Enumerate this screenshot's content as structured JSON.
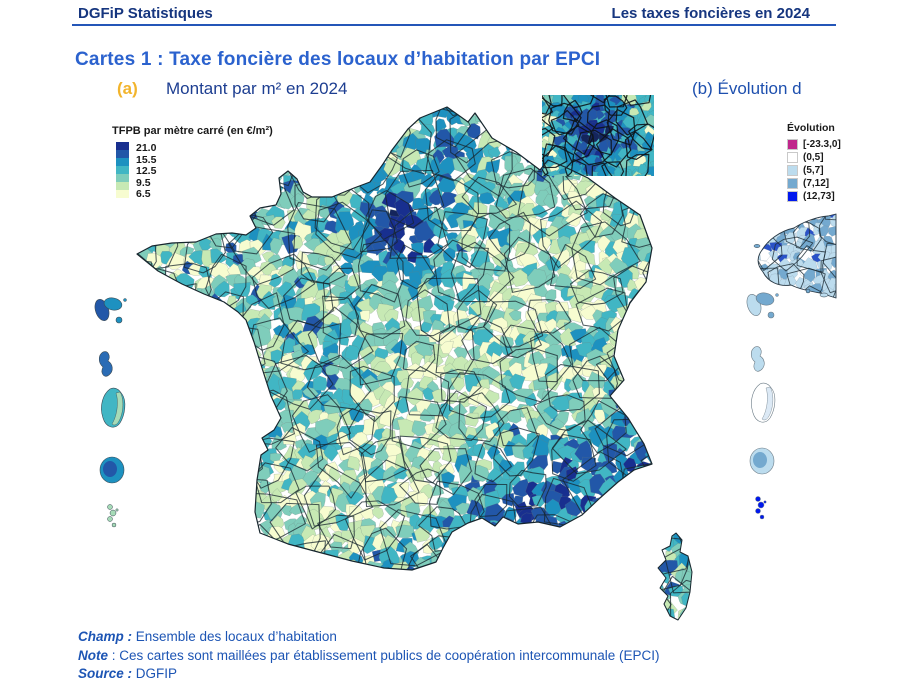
{
  "header": {
    "left": "DGFiP Statistiques",
    "right": "Les taxes foncières en 2024",
    "rule_color": "#2456b8"
  },
  "title": "Cartes 1 : Taxe foncière des locaux d’habitation par EPCI",
  "subtitles": {
    "a_marker": "(a)",
    "a_text": "Montant par m² en 2024",
    "b_text": "(b) Évolution d"
  },
  "map_a": {
    "legend_title": "TFPB par mètre carré (en €/m²)",
    "legend_labels": [
      "21.0",
      "15.5",
      "12.5",
      "9.5",
      "6.5"
    ],
    "ramp_colors": [
      "#182f8f",
      "#2257a8",
      "#1d91c0",
      "#41b6c4",
      "#7fcdbb",
      "#c7e9b4",
      "#f7fcd0"
    ],
    "palette": {
      "c0": "#f7fcd0",
      "c1": "#c7e9b4",
      "c2": "#7fcdbb",
      "c3": "#41b6c4",
      "c4": "#1d91c0",
      "c5": "#2257a8",
      "c6": "#182f8f",
      "darkest": "#14255c"
    }
  },
  "map_b": {
    "legend_title": "Évolution",
    "classes": [
      {
        "color": "#c0268c",
        "label": "[-23.3,0]"
      },
      {
        "color": "#ffffff",
        "label": "(0,5]"
      },
      {
        "color": "#bcdcee",
        "label": "(5,7]"
      },
      {
        "color": "#74a9cf",
        "label": "(7,12]"
      },
      {
        "color": "#0018ee",
        "label": "(12,73]"
      }
    ],
    "palette": {
      "w": "#ffffff",
      "lb": "#bcdcee",
      "mb": "#74a9cf",
      "bb": "#2a52c8",
      "bright": "#0018ee"
    }
  },
  "footer": {
    "lines": [
      {
        "label": "Champ :",
        "text": " Ensemble des locaux d’habitation"
      },
      {
        "label": "Note",
        "text": " : Ces cartes sont maillées par établissement publics de coopération intercommunale (EPCI)"
      },
      {
        "label": "Source :",
        "text": " DGFIP"
      }
    ]
  },
  "chart_data": [
    {
      "type": "heatmap",
      "subtype": "choropleth-map",
      "title": "Montant par m² en 2024",
      "region": "France par EPCI (métropole, Corse, encart Île-de-France, DOM : Guadeloupe, Martinique, Guyane, La Réunion, Mayotte)",
      "legend_title": "TFPB par mètre carré (en €/m²)",
      "scale_ticks": [
        21.0,
        15.5,
        12.5,
        9.5,
        6.5
      ],
      "scale_colors_high_to_low": [
        "#182f8f",
        "#2257a8",
        "#1d91c0",
        "#41b6c4",
        "#7fcdbb",
        "#c7e9b4",
        "#f7fcd0"
      ],
      "visible_pattern": "valeurs les plus élevées autour de Paris/Île-de-France et sur le littoral sud-est (Provence–Côte d’Azur); valeurs faibles le long d’une diagonale nord-est / sud-ouest"
    },
    {
      "type": "heatmap",
      "subtype": "choropleth-map",
      "title": "(b) Évolution d (partiellement visible, coupé au bord droit)",
      "legend_title": "Évolution",
      "classes": [
        "[-23.3,0]",
        "(0,5]",
        "(5,7]",
        "(7,12]",
        "(12,73]"
      ],
      "class_colors": [
        "#c0268c",
        "#ffffff",
        "#bcdcee",
        "#74a9cf",
        "#0018ee"
      ],
      "visible_pattern": "seule la partie ouest (Bretagne) et les DOM sont visibles, majoritairement en bleu clair / bleu moyen"
    }
  ]
}
